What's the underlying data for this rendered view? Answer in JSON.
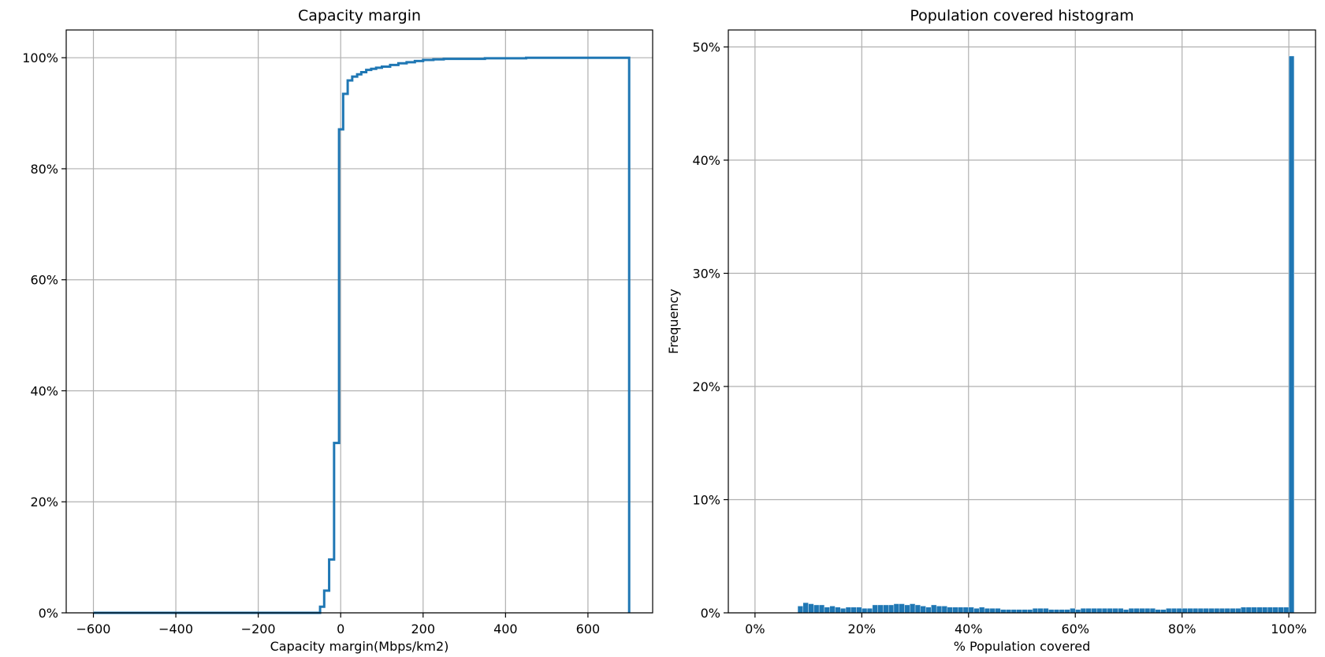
{
  "chart_data": [
    {
      "type": "line",
      "step": "post",
      "title": "Capacity margin",
      "xlabel": "Capacity margin(Mbps/km2)",
      "ylabel": "",
      "xlim": [
        -666,
        757
      ],
      "ylim": [
        0,
        1.05
      ],
      "xticks": [
        -600,
        -400,
        -200,
        0,
        200,
        400,
        600
      ],
      "xtick_labels": [
        "−600",
        "−400",
        "−200",
        "0",
        "200",
        "400",
        "600"
      ],
      "yticks": [
        0,
        0.2,
        0.4,
        0.6,
        0.8,
        1.0
      ],
      "ytick_labels": [
        "0%",
        "20%",
        "40%",
        "60%",
        "80%",
        "100%"
      ],
      "grid": true,
      "color": "#1f77b4",
      "series": [
        {
          "x": [
            -600,
            -60,
            -50,
            -40,
            -28,
            -16,
            -4,
            6,
            17,
            28,
            40,
            50,
            62,
            74,
            86,
            100,
            120,
            140,
            160,
            180,
            200,
            225,
            250,
            300,
            350,
            400,
            450,
            500,
            550,
            600,
            650,
            700,
            700
          ],
          "y": [
            0,
            0,
            0.011,
            0.04,
            0.096,
            0.306,
            0.871,
            0.935,
            0.959,
            0.966,
            0.97,
            0.974,
            0.978,
            0.98,
            0.982,
            0.984,
            0.987,
            0.99,
            0.992,
            0.994,
            0.996,
            0.997,
            0.998,
            0.998,
            0.999,
            0.999,
            1.0,
            1.0,
            1.0,
            1.0,
            1.0,
            1.0,
            0
          ]
        }
      ]
    },
    {
      "type": "bar",
      "title": "Population covered histogram",
      "xlabel": "% Population covered",
      "ylabel": "Frequency",
      "xlim": [
        -0.05,
        1.05
      ],
      "ylim": [
        0,
        0.515
      ],
      "xticks": [
        0,
        0.2,
        0.4,
        0.6,
        0.8,
        1.0
      ],
      "xtick_labels": [
        "0%",
        "20%",
        "40%",
        "60%",
        "80%",
        "100%"
      ],
      "yticks": [
        0,
        0.1,
        0.2,
        0.3,
        0.4,
        0.5
      ],
      "ytick_labels": [
        "0%",
        "10%",
        "20%",
        "30%",
        "40%",
        "50%"
      ],
      "grid": true,
      "color": "#1f77b4",
      "bin_width": 0.01,
      "bin_start": 0.08,
      "values": [
        0.006,
        0.009,
        0.008,
        0.007,
        0.007,
        0.005,
        0.006,
        0.005,
        0.004,
        0.005,
        0.005,
        0.005,
        0.004,
        0.004,
        0.007,
        0.007,
        0.007,
        0.007,
        0.008,
        0.008,
        0.007,
        0.008,
        0.007,
        0.006,
        0.005,
        0.007,
        0.006,
        0.006,
        0.005,
        0.005,
        0.005,
        0.005,
        0.005,
        0.004,
        0.005,
        0.004,
        0.004,
        0.004,
        0.003,
        0.003,
        0.003,
        0.003,
        0.003,
        0.003,
        0.004,
        0.004,
        0.004,
        0.003,
        0.003,
        0.003,
        0.003,
        0.004,
        0.003,
        0.004,
        0.004,
        0.004,
        0.004,
        0.004,
        0.004,
        0.004,
        0.004,
        0.003,
        0.004,
        0.004,
        0.004,
        0.004,
        0.004,
        0.003,
        0.003,
        0.004,
        0.004,
        0.004,
        0.004,
        0.004,
        0.004,
        0.004,
        0.004,
        0.004,
        0.004,
        0.004,
        0.004,
        0.004,
        0.004,
        0.005,
        0.005,
        0.005,
        0.005,
        0.005,
        0.005,
        0.005,
        0.005,
        0.005,
        0.492
      ]
    }
  ]
}
